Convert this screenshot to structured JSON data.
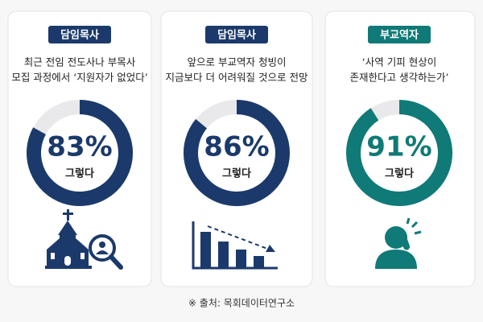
{
  "chart_data": [
    {
      "type": "donut",
      "badge": "담임목사",
      "title": [
        "최근 전임 전도사나 부목사",
        "모집 과정에서 ‘지원자가 없었다’"
      ],
      "values": [
        83
      ],
      "value_labels": [
        "83%"
      ],
      "answer": "그렇다",
      "color": "#1b3a6b"
    },
    {
      "type": "donut",
      "badge": "담임목사",
      "title": [
        "앞으로 부교역자 청빙이",
        "지금보다 더 어려워질 것으로 전망"
      ],
      "values": [
        86
      ],
      "value_labels": [
        "86%"
      ],
      "answer": "그렇다",
      "color": "#1b3a6b"
    },
    {
      "type": "donut",
      "badge": "부교역자",
      "title": [
        "‘사역 기피 현상이",
        "존재한다고 생각하는가’"
      ],
      "values": [
        91
      ],
      "value_labels": [
        "91%"
      ],
      "answer": "그렇다",
      "color": "#0f7a77"
    }
  ],
  "source": "※ 출처: 목회데이터연구소"
}
